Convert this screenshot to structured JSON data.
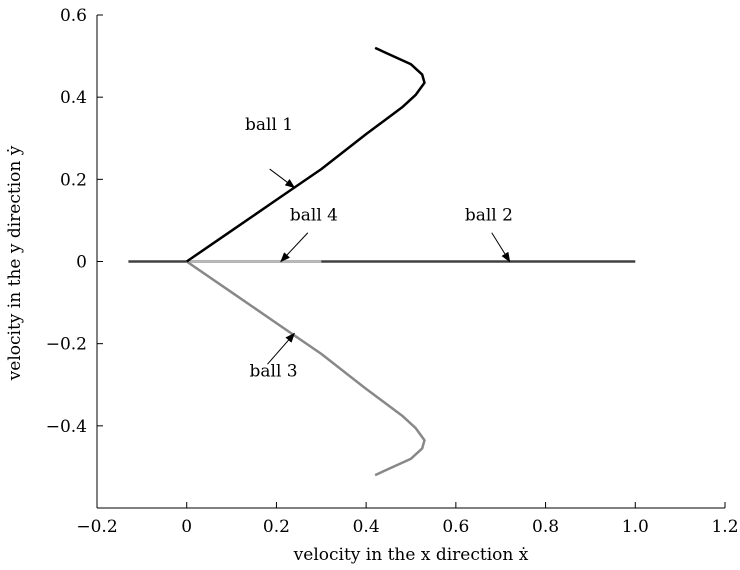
{
  "chart_data": {
    "type": "line",
    "title": "",
    "xlabel": "velocity in the x direction ẋ",
    "ylabel": "velocity in the y direction ẏ",
    "xlim": [
      -0.2,
      1.2
    ],
    "ylim": [
      -0.6,
      0.6
    ],
    "xticks": [
      -0.2,
      0,
      0.2,
      0.4,
      0.6,
      0.8,
      1.0,
      1.2
    ],
    "xtick_labels": [
      "−0.2",
      "0",
      "0.2",
      "0.4",
      "0.6",
      "0.8",
      "1.0",
      "1.2"
    ],
    "yticks": [
      -0.4,
      -0.2,
      0,
      0.2,
      0.4,
      0.6
    ],
    "ytick_labels": [
      "−0.4",
      "−0.2",
      "0",
      "0.2",
      "0.4",
      "0.6"
    ],
    "grid": false,
    "series": [
      {
        "name": "ball 1",
        "color": "#000000",
        "x": [
          0,
          0.1,
          0.2,
          0.3,
          0.4,
          0.48,
          0.51,
          0.53,
          0.525,
          0.5,
          0.46,
          0.42
        ],
        "y": [
          0,
          0.075,
          0.15,
          0.225,
          0.31,
          0.375,
          0.405,
          0.435,
          0.455,
          0.48,
          0.5,
          0.52
        ]
      },
      {
        "name": "ball 2",
        "color": "#404040",
        "x": [
          -0.13,
          0,
          1.0
        ],
        "y": [
          0,
          0,
          0
        ]
      },
      {
        "name": "ball 3",
        "color": "#888888",
        "x": [
          0,
          0.1,
          0.2,
          0.3,
          0.4,
          0.48,
          0.51,
          0.53,
          0.525,
          0.5,
          0.46,
          0.42
        ],
        "y": [
          0,
          -0.075,
          -0.15,
          -0.225,
          -0.31,
          -0.375,
          -0.405,
          -0.435,
          -0.455,
          -0.48,
          -0.5,
          -0.52
        ]
      },
      {
        "name": "ball 4",
        "color": "#bbbbbb",
        "x": [
          0,
          0.3
        ],
        "y": [
          0,
          0
        ]
      }
    ],
    "annotations": [
      {
        "text": "ball 1",
        "label_x": 0.13,
        "label_y": 0.32,
        "arrow_from": [
          0.185,
          0.225
        ],
        "arrow_to": [
          0.24,
          0.18
        ]
      },
      {
        "text": "ball 4",
        "label_x": 0.23,
        "label_y": 0.1,
        "arrow_from": [
          0.27,
          0.07
        ],
        "arrow_to": [
          0.21,
          0.0
        ]
      },
      {
        "text": "ball 2",
        "label_x": 0.62,
        "label_y": 0.1,
        "arrow_from": [
          0.68,
          0.07
        ],
        "arrow_to": [
          0.72,
          0.0
        ]
      },
      {
        "text": "ball 3",
        "label_x": 0.14,
        "label_y": -0.28,
        "arrow_from": [
          0.18,
          -0.25
        ],
        "arrow_to": [
          0.24,
          -0.175
        ]
      }
    ]
  }
}
